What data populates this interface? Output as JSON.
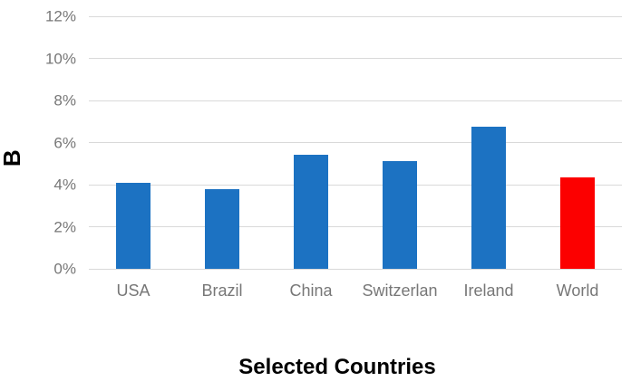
{
  "chart_data": {
    "type": "bar",
    "title": "",
    "xlabel": "Selected Countries",
    "ylabel": "B",
    "categories": [
      "USA",
      "Brazil",
      "China",
      "Switzerlan",
      "Ireland",
      "World"
    ],
    "values": [
      4.1,
      3.8,
      5.4,
      5.1,
      6.75,
      4.35
    ],
    "value_unit": "%",
    "bar_colors": [
      "#1C72C2",
      "#1C72C2",
      "#1C72C2",
      "#1C72C2",
      "#1C72C2",
      "#FC0000"
    ],
    "default_bar_color": "#1C72C2",
    "highlight_bar_color": "#FC0000",
    "ylim": [
      0,
      12
    ],
    "ytick_values": [
      0,
      2,
      4,
      6,
      8,
      10,
      12
    ],
    "ytick_labels": [
      "0%",
      "2%",
      "4%",
      "6%",
      "8%",
      "10%",
      "12%"
    ],
    "grid": "horizontal",
    "legend": "none",
    "colors": {
      "gridline": "#d9d9d9",
      "tick_label": "#777777",
      "axis_title": "#000000",
      "background": "#ffffff"
    }
  }
}
